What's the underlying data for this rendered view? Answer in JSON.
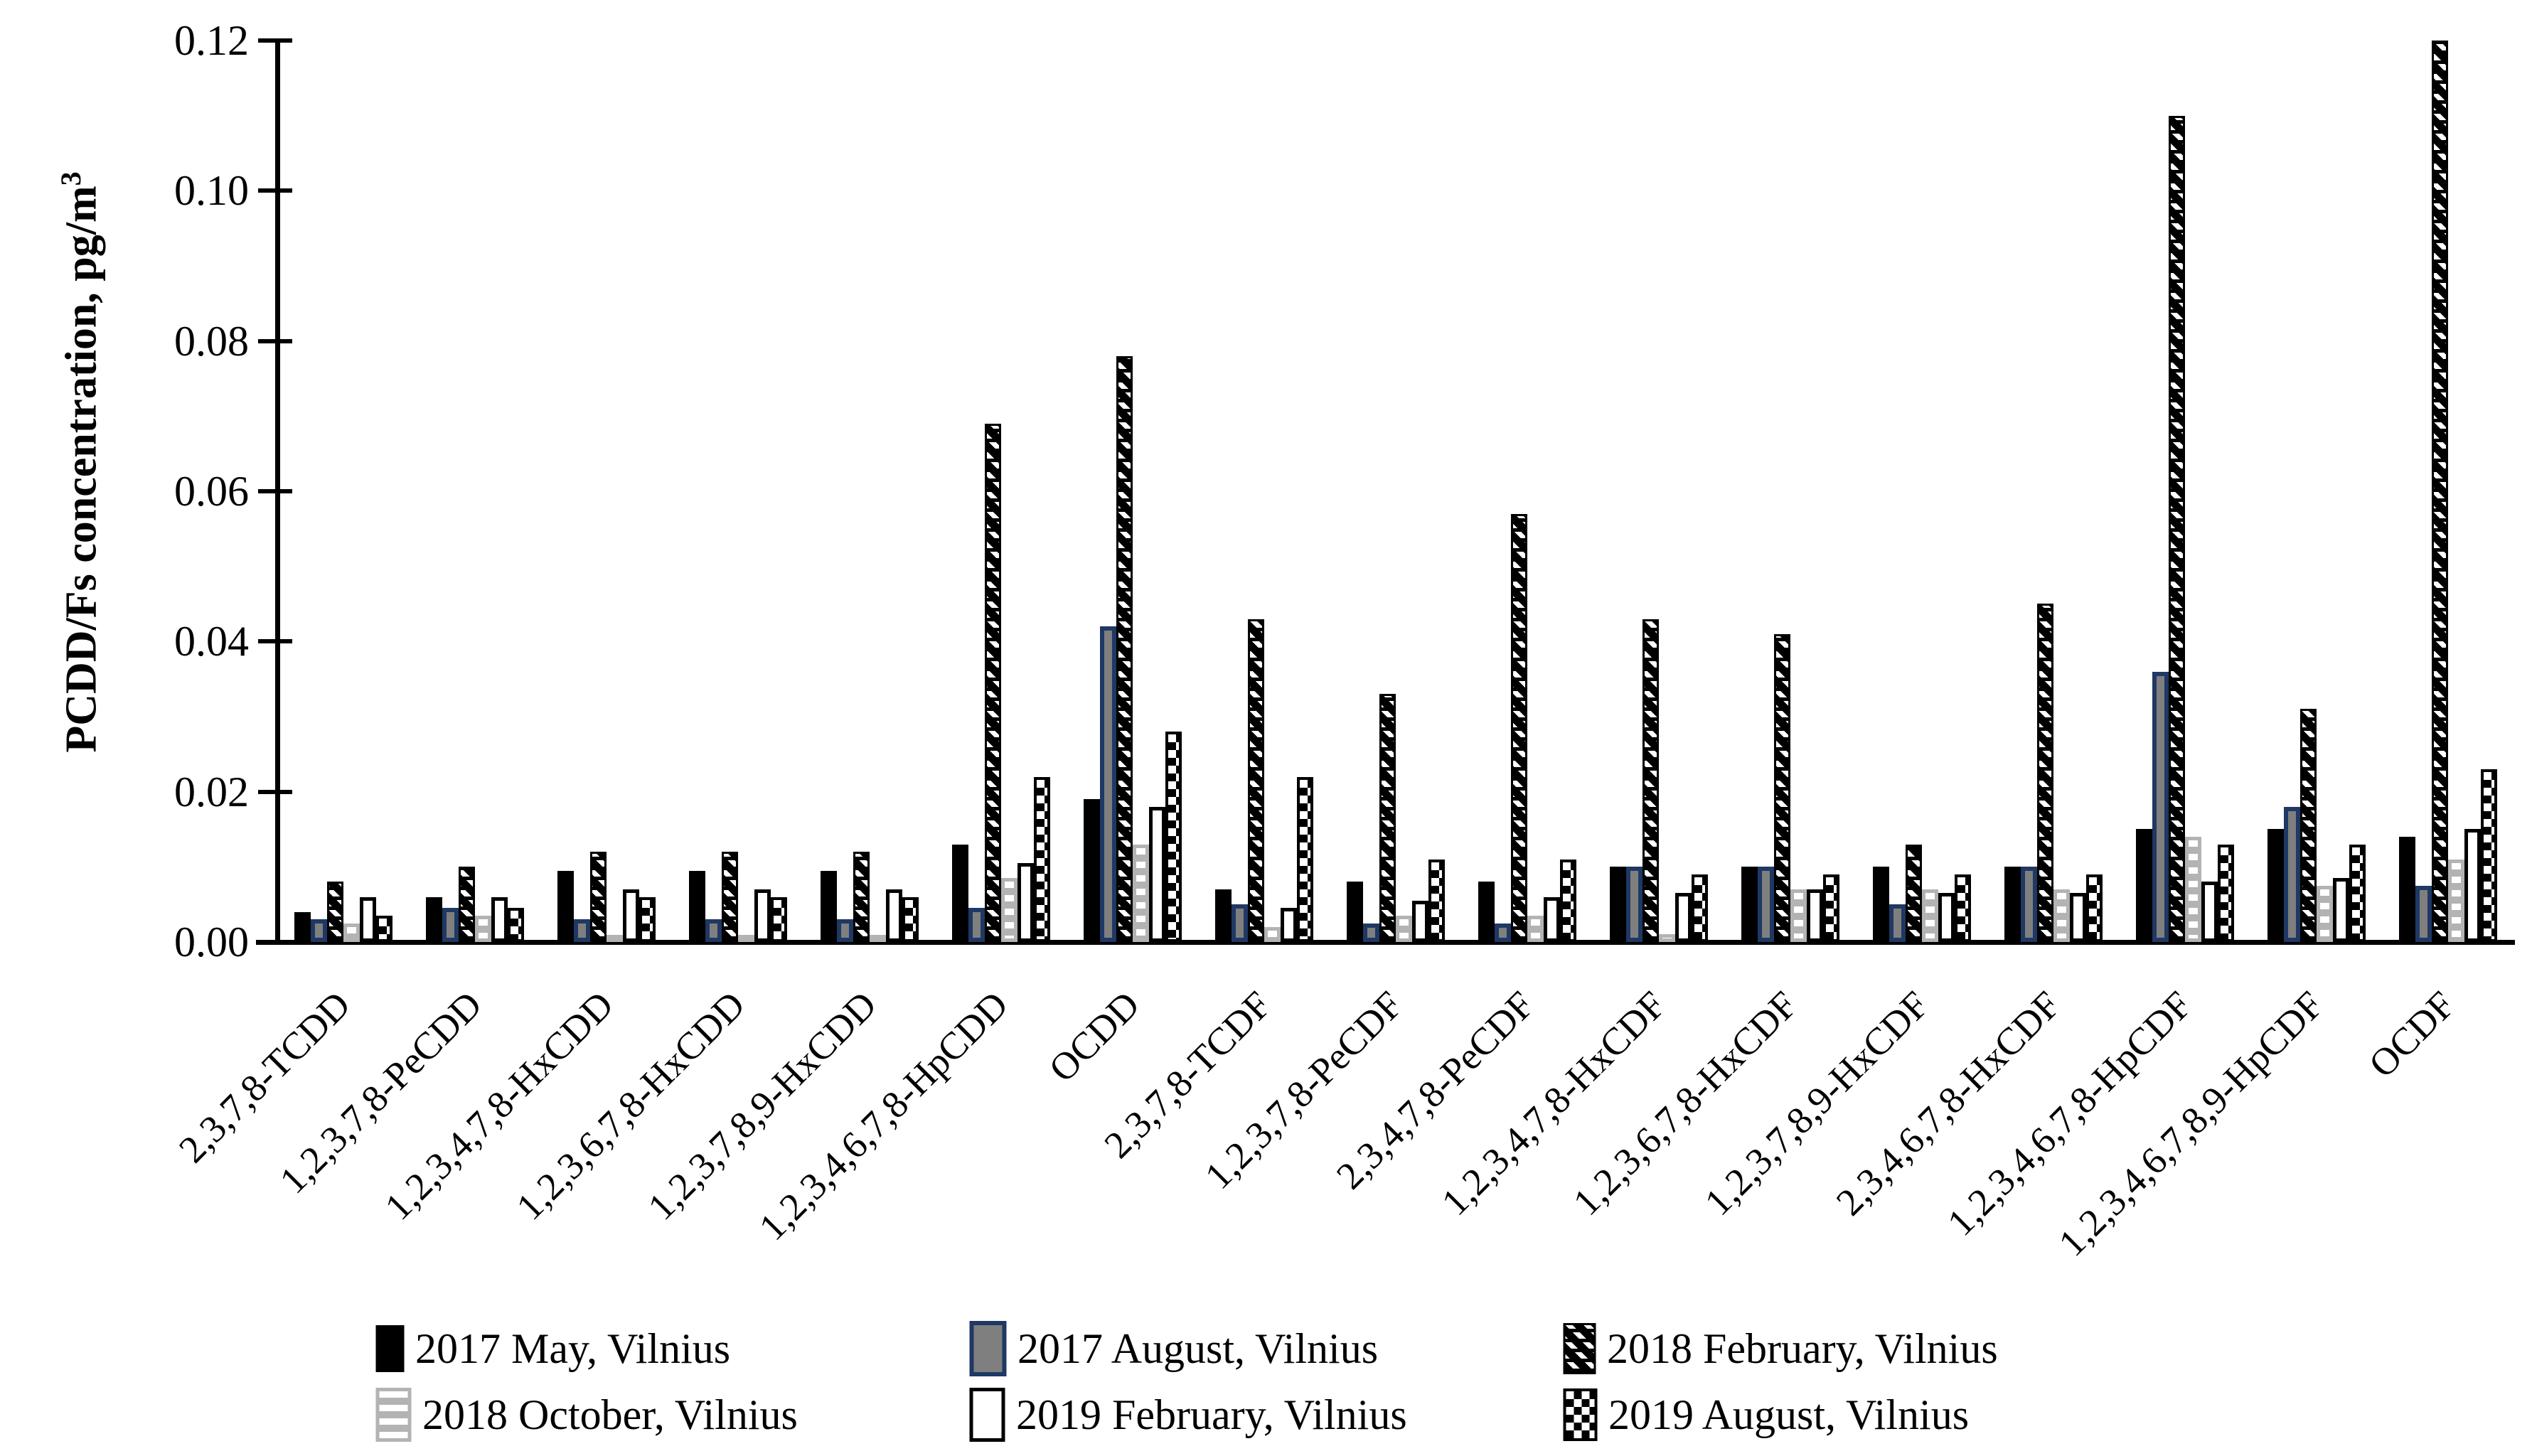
{
  "chart_data": {
    "type": "bar",
    "title": "",
    "ylabel": "PCDD/Fs concentration, pg/m",
    "ylabel_superscript": "3",
    "xlabel": "",
    "ylim": [
      0,
      0.12
    ],
    "ytick_step": 0.02,
    "yticks_top_to_bottom": [
      "0.12",
      "0.10",
      "0.08",
      "0.06",
      "0.04",
      "0.02",
      "0.00"
    ],
    "grid": "off",
    "legend_position": "bottom",
    "categories": [
      "2,3,7,8-TCDD",
      "1,2,3,7,8-PeCDD",
      "1,2,3,4,7,8-HxCDD",
      "1,2,3,6,7,8-HxCDD",
      "1,2,3,7,8,9-HxCDD",
      "1,2,3,4,6,7,8-HpCDD",
      "OCDD",
      "2,3,7,8-TCDF",
      "1,2,3,7,8-PeCDF",
      "2,3,4,7,8-PeCDF",
      "1,2,3,4,7,8-HxCDF",
      "1,2,3,6,7,8-HxCDF",
      "1,2,3,7,8,9-HxCDF",
      "2,3,4,6,7,8-HxCDF",
      "1,2,3,4,6,7,8-HpCDF",
      "1,2,3,4,6,7,8,9-HpCDF",
      "OCDF"
    ],
    "series": [
      {
        "name": "2017 May, Vilnius",
        "pattern": "solid-black",
        "values": [
          0.004,
          0.006,
          0.0095,
          0.0095,
          0.0095,
          0.013,
          0.019,
          0.007,
          0.008,
          0.008,
          0.01,
          0.01,
          0.01,
          0.01,
          0.015,
          0.015,
          0.014
        ]
      },
      {
        "name": "2017 August, Vilnius",
        "pattern": "gray-navy-border",
        "values": [
          0.003,
          0.0045,
          0.003,
          0.003,
          0.003,
          0.0045,
          0.042,
          0.005,
          0.0025,
          0.0025,
          0.01,
          0.01,
          0.005,
          0.01,
          0.036,
          0.018,
          0.0075
        ]
      },
      {
        "name": "2018 February, Vilnius",
        "pattern": "black-diagonal-dash",
        "values": [
          0.008,
          0.01,
          0.012,
          0.012,
          0.012,
          0.069,
          0.078,
          0.043,
          0.033,
          0.057,
          0.043,
          0.041,
          0.013,
          0.045,
          0.11,
          0.031,
          0.12
        ]
      },
      {
        "name": "2018 October, Vilnius",
        "pattern": "gray-horizontal-stripe",
        "values": [
          0.0025,
          0.0035,
          0.0005,
          0.0005,
          0.0005,
          0.0085,
          0.013,
          0.002,
          0.0035,
          0.0035,
          0.001,
          0.007,
          0.007,
          0.007,
          0.014,
          0.0075,
          0.011
        ]
      },
      {
        "name": "2019 February, Vilnius",
        "pattern": "white-black-border",
        "values": [
          0.006,
          0.006,
          0.007,
          0.007,
          0.007,
          0.0105,
          0.018,
          0.0045,
          0.0055,
          0.006,
          0.0065,
          0.007,
          0.0065,
          0.0065,
          0.008,
          0.0085,
          0.015
        ]
      },
      {
        "name": "2019 August, Vilnius",
        "pattern": "black-white-check",
        "values": [
          0.0035,
          0.0045,
          0.006,
          0.006,
          0.006,
          0.022,
          0.028,
          0.022,
          0.011,
          0.011,
          0.009,
          0.009,
          0.009,
          0.009,
          0.013,
          0.013,
          0.023
        ]
      }
    ],
    "colors": {
      "bar_black": "#000000",
      "navy_border": "#1f3864",
      "gray_fill": "#7f7f7f",
      "light_gray_fill": "#b3b3b3",
      "white_fill": "#ffffff"
    }
  }
}
